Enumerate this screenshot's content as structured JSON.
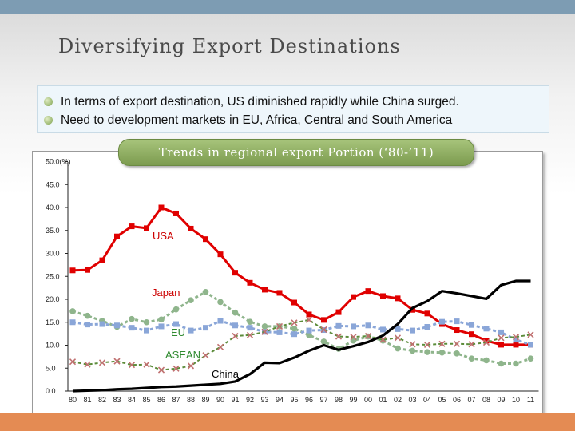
{
  "slide": {
    "title": "Diversifying Export Destinations",
    "bullets": [
      "In terms of export destination, US diminished rapidly while China surged.",
      "Need to development markets in EU, Africa, Central and South America"
    ]
  },
  "colors": {
    "top_band": "#7d9cb3",
    "bottom_band": "#e48b53",
    "title_box": "#8fb062",
    "usa": "#e00000",
    "japan": "#8fb58c",
    "eu": "#8aa6d8",
    "asean": "#5c8c3a",
    "china": "#000000",
    "label_red": "#cc0000",
    "label_green": "#2f8a2f"
  },
  "chart_data": {
    "type": "line",
    "title": "Trends in regional export Portion (‘80-’11)",
    "x": [
      "80",
      "81",
      "82",
      "83",
      "84",
      "85",
      "86",
      "87",
      "88",
      "89",
      "90",
      "91",
      "92",
      "93",
      "94",
      "95",
      "96",
      "97",
      "98",
      "99",
      "00",
      "01",
      "02",
      "03",
      "04",
      "05",
      "06",
      "07",
      "08",
      "09",
      "10",
      "11"
    ],
    "y_ticks": [
      "50.0",
      "45.0",
      "40.0",
      "35.0",
      "30.0",
      "25.0",
      "20.0",
      "15.0",
      "10.0",
      "5.0",
      "0.0"
    ],
    "y_unit": "(%)",
    "ylim": [
      0,
      50
    ],
    "grid": false,
    "legend": "inline labels",
    "series": [
      {
        "name": "USA",
        "color": "#e00000",
        "marker": "square",
        "dash": false,
        "width": 3,
        "values": [
          26.3,
          26.4,
          28.5,
          33.7,
          35.9,
          35.5,
          40.0,
          38.7,
          35.4,
          33.1,
          29.8,
          25.8,
          23.6,
          22.1,
          21.4,
          19.3,
          16.7,
          15.5,
          17.2,
          20.5,
          21.8,
          20.7,
          20.2,
          17.7,
          16.9,
          14.6,
          13.3,
          12.4,
          11.0,
          10.1,
          10.1,
          10.1
        ]
      },
      {
        "name": "Japan",
        "color": "#8fb58c",
        "marker": "circle",
        "dash": true,
        "width": 3,
        "values": [
          17.4,
          16.4,
          15.3,
          14.0,
          15.7,
          15.0,
          15.6,
          17.8,
          19.8,
          21.6,
          19.4,
          17.1,
          15.1,
          14.1,
          14.1,
          13.6,
          12.2,
          10.8,
          9.2,
          11.0,
          11.9,
          11.0,
          9.3,
          8.8,
          8.5,
          8.4,
          8.2,
          7.1,
          6.7,
          6.0,
          6.0,
          7.1
        ]
      },
      {
        "name": "EU",
        "color": "#8aa6d8",
        "marker": "square",
        "dash": true,
        "width": 3,
        "values": [
          15.0,
          14.5,
          14.6,
          14.3,
          13.8,
          13.2,
          14.1,
          14.6,
          13.2,
          13.8,
          15.3,
          14.3,
          13.8,
          12.9,
          12.8,
          12.4,
          13.2,
          13.3,
          14.2,
          14.1,
          14.3,
          13.4,
          13.5,
          13.2,
          14.0,
          15.1,
          15.2,
          14.4,
          13.6,
          12.8,
          11.2,
          10.1
        ]
      },
      {
        "name": "ASEAN",
        "color": "#5c8c3a",
        "marker": "x",
        "dash": true,
        "width": 2,
        "values": [
          6.4,
          5.8,
          6.2,
          6.5,
          5.7,
          5.8,
          4.6,
          4.9,
          5.5,
          7.8,
          9.6,
          12.0,
          12.2,
          12.9,
          14.1,
          14.9,
          15.5,
          13.4,
          11.9,
          11.8,
          12.0,
          11.2,
          11.6,
          10.2,
          10.1,
          10.3,
          10.3,
          10.2,
          10.6,
          11.6,
          11.8,
          12.3
        ]
      },
      {
        "name": "China",
        "color": "#000000",
        "marker": "none",
        "dash": false,
        "width": 3.2,
        "values": [
          0.0,
          0.1,
          0.2,
          0.4,
          0.5,
          0.7,
          0.9,
          1.0,
          1.2,
          1.4,
          1.6,
          2.1,
          3.7,
          6.2,
          6.1,
          7.3,
          8.8,
          10.0,
          9.0,
          9.8,
          10.7,
          12.1,
          14.6,
          18.1,
          19.6,
          21.8,
          21.3,
          20.7,
          20.1,
          23.1,
          24.0,
          24.0
        ]
      }
    ],
    "annotations": [
      {
        "text": "USA",
        "color": "#cc0000"
      },
      {
        "text": "Japan",
        "color": "#cc0000"
      },
      {
        "text": "EU",
        "color": "#2f8a2f"
      },
      {
        "text": "ASEAN",
        "color": "#2f8a2f"
      },
      {
        "text": "China",
        "color": "#000000"
      }
    ]
  }
}
